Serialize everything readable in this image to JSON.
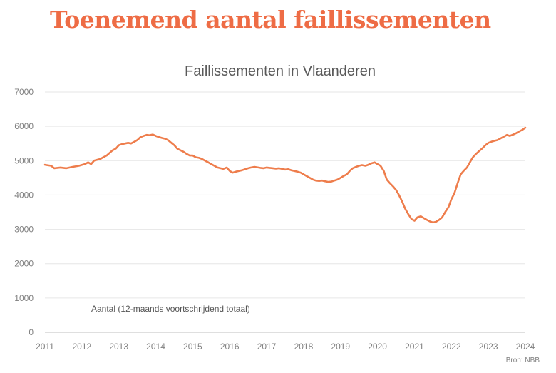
{
  "headline": "Toenemend aantal faillissementen",
  "colors": {
    "headline": "#ee6c45",
    "line": "#ee7d4c",
    "grid": "#e6e6e6"
  },
  "chart_data": {
    "type": "line",
    "title": "Faillissementen in Vlaanderen",
    "xlabel": "",
    "ylabel": "",
    "annotation": "Aantal (12-maands voortschrijdend totaal)",
    "source": "Bron: NBB",
    "x_tick_labels": [
      "2011",
      "2012",
      "2013",
      "2014",
      "2015",
      "2016",
      "2017",
      "2018",
      "2019",
      "2020",
      "2021",
      "2022",
      "2023",
      "2024"
    ],
    "y_tick_labels": [
      "0",
      "1000",
      "2000",
      "3000",
      "4000",
      "5000",
      "6000",
      "7000"
    ],
    "ylim": [
      0,
      7000
    ],
    "xlim": [
      2011,
      2024
    ],
    "grid": true,
    "series": [
      {
        "name": "Aantal (12-maands voortschrijdend totaal)",
        "x": [
          2011.0,
          2011.17,
          2011.25,
          2011.42,
          2011.58,
          2011.75,
          2011.92,
          2012.08,
          2012.17,
          2012.25,
          2012.33,
          2012.5,
          2012.58,
          2012.67,
          2012.83,
          2012.92,
          2013.0,
          2013.08,
          2013.17,
          2013.25,
          2013.33,
          2013.42,
          2013.5,
          2013.58,
          2013.67,
          2013.75,
          2013.83,
          2013.92,
          2014.0,
          2014.08,
          2014.17,
          2014.25,
          2014.33,
          2014.42,
          2014.5,
          2014.58,
          2014.67,
          2014.75,
          2014.83,
          2014.92,
          2015.0,
          2015.08,
          2015.17,
          2015.25,
          2015.33,
          2015.42,
          2015.5,
          2015.67,
          2015.75,
          2015.83,
          2015.92,
          2016.0,
          2016.08,
          2016.17,
          2016.25,
          2016.33,
          2016.5,
          2016.58,
          2016.67,
          2016.83,
          2016.92,
          2017.0,
          2017.08,
          2017.17,
          2017.25,
          2017.33,
          2017.42,
          2017.5,
          2017.58,
          2017.67,
          2017.75,
          2017.83,
          2017.92,
          2018.0,
          2018.08,
          2018.17,
          2018.25,
          2018.33,
          2018.42,
          2018.5,
          2018.58,
          2018.67,
          2018.75,
          2018.83,
          2018.92,
          2019.0,
          2019.08,
          2019.17,
          2019.25,
          2019.33,
          2019.42,
          2019.5,
          2019.58,
          2019.67,
          2019.75,
          2019.83,
          2019.92,
          2020.0,
          2020.08,
          2020.17,
          2020.25,
          2020.33,
          2020.42,
          2020.5,
          2020.58,
          2020.67,
          2020.75,
          2020.83,
          2020.92,
          2021.0,
          2021.08,
          2021.17,
          2021.25,
          2021.33,
          2021.42,
          2021.5,
          2021.58,
          2021.67,
          2021.75,
          2021.83,
          2021.92,
          2022.0,
          2022.08,
          2022.17,
          2022.25,
          2022.33,
          2022.42,
          2022.5,
          2022.58,
          2022.67,
          2022.75,
          2022.83,
          2022.92,
          2023.0,
          2023.08,
          2023.17,
          2023.25,
          2023.33,
          2023.42,
          2023.5,
          2023.58,
          2023.67,
          2023.75,
          2023.83,
          2023.92,
          2024.0
        ],
        "values": [
          4880,
          4850,
          4780,
          4800,
          4780,
          4820,
          4850,
          4900,
          4950,
          4900,
          5000,
          5050,
          5100,
          5150,
          5300,
          5350,
          5450,
          5480,
          5500,
          5520,
          5500,
          5550,
          5600,
          5680,
          5720,
          5750,
          5740,
          5760,
          5720,
          5690,
          5660,
          5640,
          5600,
          5520,
          5450,
          5350,
          5300,
          5260,
          5200,
          5150,
          5150,
          5100,
          5080,
          5050,
          5000,
          4950,
          4900,
          4800,
          4780,
          4760,
          4800,
          4700,
          4650,
          4680,
          4700,
          4720,
          4780,
          4800,
          4820,
          4790,
          4780,
          4800,
          4790,
          4780,
          4770,
          4780,
          4760,
          4740,
          4750,
          4720,
          4700,
          4680,
          4650,
          4600,
          4550,
          4500,
          4450,
          4420,
          4410,
          4420,
          4400,
          4380,
          4390,
          4420,
          4450,
          4500,
          4550,
          4600,
          4700,
          4780,
          4820,
          4850,
          4870,
          4850,
          4880,
          4920,
          4950,
          4900,
          4850,
          4700,
          4450,
          4350,
          4250,
          4150,
          4000,
          3800,
          3600,
          3450,
          3300,
          3250,
          3350,
          3380,
          3330,
          3280,
          3230,
          3200,
          3220,
          3280,
          3350,
          3500,
          3650,
          3880,
          4050,
          4350,
          4600,
          4700,
          4800,
          4950,
          5100,
          5200,
          5280,
          5350,
          5450,
          5520,
          5550,
          5580,
          5600,
          5650,
          5700,
          5750,
          5720,
          5760,
          5800,
          5850,
          5900,
          5960
        ]
      }
    ]
  }
}
